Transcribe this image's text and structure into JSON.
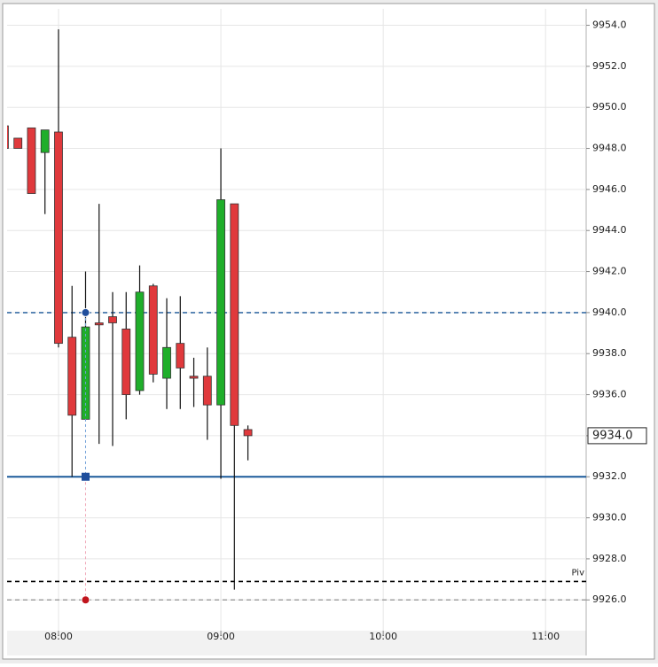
{
  "chart_data": {
    "type": "candlestick",
    "x": [
      "07:40",
      "07:45",
      "07:50",
      "07:55",
      "08:00",
      "08:05",
      "08:10",
      "08:15",
      "08:20",
      "08:25",
      "08:30",
      "08:35",
      "08:40",
      "08:45",
      "08:50",
      "08:55",
      "09:00",
      "09:05",
      "09:10"
    ],
    "open": [
      9949.1,
      9948.5,
      9949.0,
      9947.8,
      9948.8,
      9938.8,
      9934.8,
      9939.5,
      9939.8,
      9939.2,
      9936.2,
      9941.3,
      9936.8,
      9938.5,
      9936.9,
      9936.9,
      9935.5,
      9945.3,
      9934.3
    ],
    "high": [
      9949.1,
      9948.5,
      9949.0,
      9948.9,
      9953.8,
      9941.3,
      9942.0,
      9945.3,
      9941.0,
      9941.0,
      9942.3,
      9941.4,
      9940.7,
      9940.8,
      9937.8,
      9938.3,
      9948.0,
      9945.3,
      9934.5
    ],
    "low": [
      9948.0,
      9948.0,
      9945.8,
      9944.8,
      9938.3,
      9932.0,
      9934.8,
      9933.6,
      9933.5,
      9934.8,
      9936.0,
      9936.6,
      9935.3,
      9935.3,
      9935.4,
      9933.8,
      9931.9,
      9926.5,
      9932.8
    ],
    "close": [
      9948.0,
      9948.0,
      9945.8,
      9948.9,
      9938.5,
      9935.0,
      9939.3,
      9939.4,
      9939.5,
      9936.0,
      9941.0,
      9937.0,
      9938.3,
      9937.3,
      9936.8,
      9935.5,
      9945.5,
      9934.5,
      9934.0
    ],
    "up_color": "#1fae2a",
    "down_color": "#e0393c",
    "xlim": [
      "07:41",
      "11:15"
    ],
    "xticks": [
      "08:00",
      "09:00",
      "10:00",
      "11:00"
    ],
    "ylim": [
      9924.5,
      9954.8
    ],
    "yticks": [
      {
        "value": 9926,
        "label": "9926.0"
      },
      {
        "value": 9928,
        "label": "9928.0"
      },
      {
        "value": 9930,
        "label": "9930.0"
      },
      {
        "value": 9932,
        "label": "9932.0"
      },
      {
        "value": 9934,
        "label": "9934.0"
      },
      {
        "value": 9936,
        "label": "9936.0"
      },
      {
        "value": 9938,
        "label": "9938.0"
      },
      {
        "value": 9940,
        "label": "9940.0"
      },
      {
        "value": 9942,
        "label": "9942.0"
      },
      {
        "value": 9944,
        "label": "9944.0"
      },
      {
        "value": 9946,
        "label": "9946.0"
      },
      {
        "value": 9948,
        "label": "9948.0"
      },
      {
        "value": 9950,
        "label": "9950.0"
      },
      {
        "value": 9952,
        "label": "9952.0"
      },
      {
        "value": 9954,
        "label": "9954.0"
      }
    ],
    "grid": true,
    "levels": [
      {
        "value": 9940,
        "color": "#3a6ea5",
        "style": "dashed"
      },
      {
        "value": 9932,
        "color": "#1c5a9a",
        "style": "solid"
      },
      {
        "value": 9926.9,
        "color": "#000000",
        "style": "dashed",
        "label": "Piv"
      },
      {
        "value": 9926,
        "color": "#a0a0a0",
        "style": "dashed"
      }
    ],
    "markers": [
      {
        "x": "08:10",
        "value": 9940,
        "shape": "circle",
        "color": "#1f4e9c"
      },
      {
        "x": "08:10",
        "value": 9932,
        "shape": "square",
        "color": "#1f4e9c"
      },
      {
        "x": "08:10",
        "value": 9926,
        "shape": "circle",
        "color": "#c0141c"
      }
    ],
    "price_marker": {
      "value": 9934.0,
      "label": "9934.0"
    }
  }
}
